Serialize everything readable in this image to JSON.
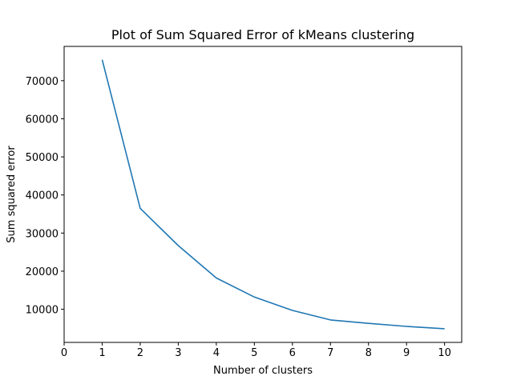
{
  "chart_data": {
    "type": "line",
    "title": "Plot of Sum Squared Error of kMeans clustering",
    "xlabel": "Number of clusters",
    "ylabel": "Sum squared error",
    "xlim": [
      0,
      10.45
    ],
    "ylim": [
      1300,
      79000
    ],
    "grid": false,
    "x_ticks": [
      0,
      1,
      2,
      3,
      4,
      5,
      6,
      7,
      8,
      9,
      10
    ],
    "y_ticks": [
      10000,
      20000,
      30000,
      40000,
      50000,
      60000,
      70000
    ],
    "series": [
      {
        "color": "#1f77b4",
        "x": [
          1,
          2,
          3,
          4,
          5,
          6,
          7,
          8,
          9,
          10
        ],
        "y": [
          75500,
          36500,
          26700,
          18200,
          13200,
          9700,
          7200,
          6300,
          5500,
          4900
        ]
      }
    ]
  }
}
